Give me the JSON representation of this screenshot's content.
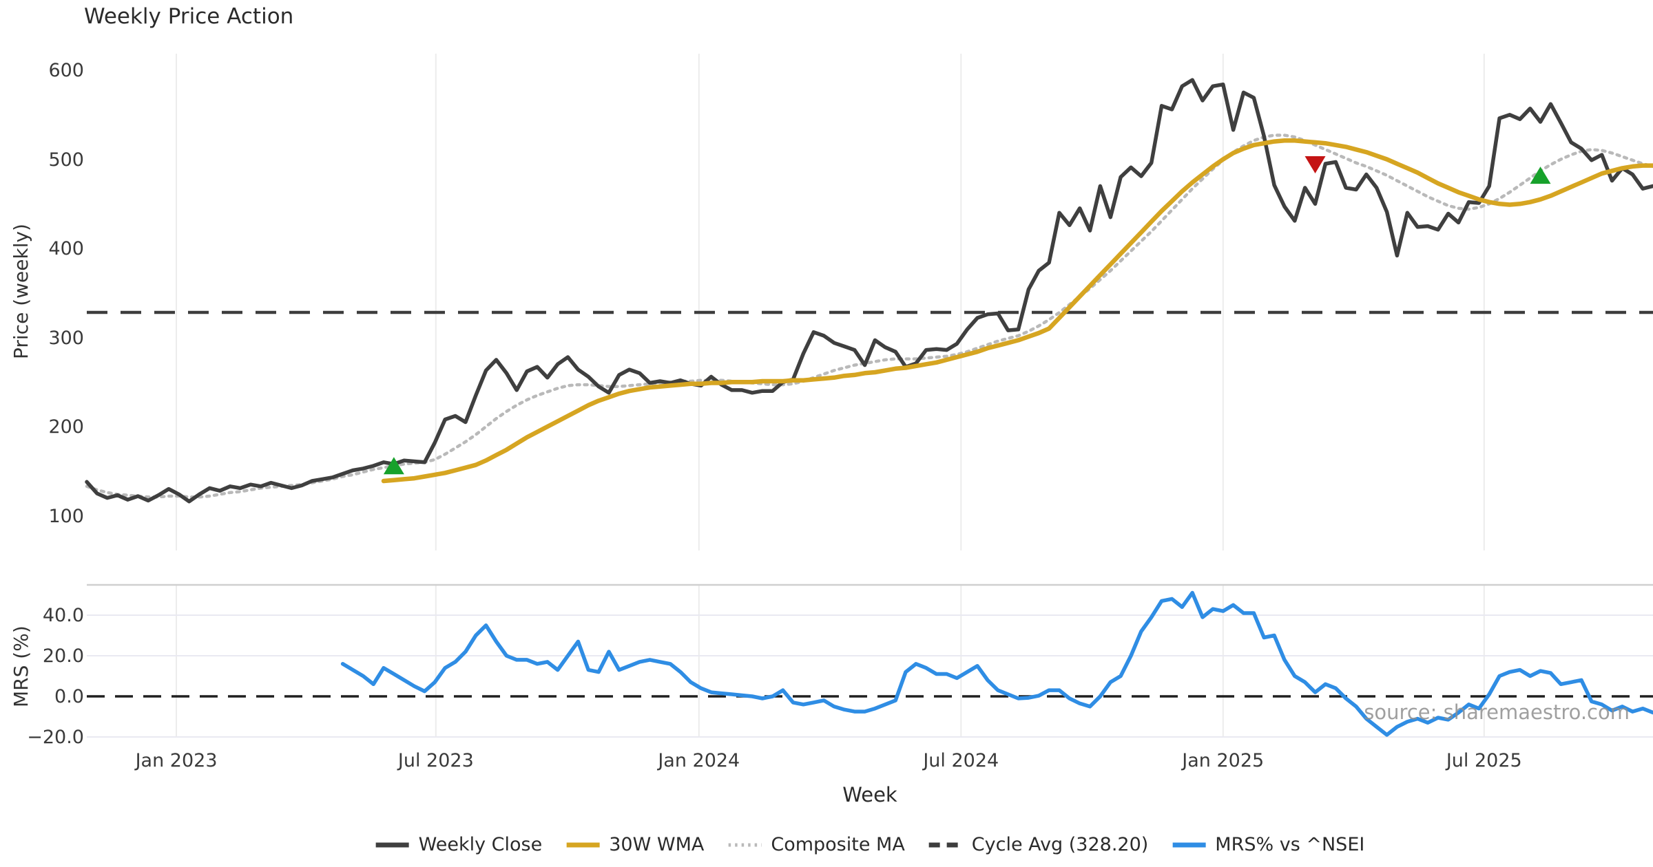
{
  "title": "Weekly Price Action",
  "watermark": "source: sharemaestro.com",
  "x_axis": {
    "label": "Week",
    "ticks": [
      {
        "label": "Jan 2023",
        "week": 8.75
      },
      {
        "label": "Jul 2023",
        "week": 34.1
      },
      {
        "label": "Jan 2024",
        "week": 59.8
      },
      {
        "label": "Jul 2024",
        "week": 85.4
      },
      {
        "label": "Jan 2025",
        "week": 111.0
      },
      {
        "label": "Jul 2025",
        "week": 136.5
      }
    ]
  },
  "legend": [
    {
      "label": "Weekly Close",
      "color": "#3f3f3f",
      "style": "solid"
    },
    {
      "label": "30W WMA",
      "color": "#d6a521",
      "style": "solid"
    },
    {
      "label": "Composite MA",
      "color": "#b9b9b9",
      "style": "dotted"
    },
    {
      "label": "Cycle Avg (328.20)",
      "color": "#3d3d3d",
      "style": "dashed"
    },
    {
      "label": "MRS% vs ^NSEI",
      "color": "#2f8de4",
      "style": "solid"
    }
  ],
  "colors": {
    "close": "#3f3f3f",
    "wma": "#d6a521",
    "composite": "#b9b9b9",
    "cycle": "#3d3d3d",
    "mrs": "#2f8de4",
    "buy": "#17a12b",
    "sell": "#c41414",
    "vgrid": "#ececec",
    "hgrid": "#e9e9f1",
    "separator": "#cfcfcf",
    "zero": "#1f1f1f"
  },
  "chart_data": [
    {
      "type": "line",
      "panel": "price",
      "title": "Weekly Price Action",
      "xlabel": "Week",
      "ylabel": "Price (weekly)",
      "yticks": [
        600,
        500,
        400,
        300,
        200,
        100
      ],
      "ylim": [
        60,
        620
      ],
      "week_count": 154,
      "x_range": [
        "Nov 2022",
        "Oct 2025"
      ],
      "grid": "vertical-only",
      "cycle_avg": 328.2,
      "series": [
        {
          "name": "Weekly Close",
          "style": "solid",
          "start_week": 0,
          "values": [
            138,
            125,
            120,
            123,
            118,
            122,
            117,
            123,
            130,
            124,
            116,
            124,
            131,
            128,
            133,
            131,
            135,
            133,
            137,
            134,
            131,
            134,
            139,
            141,
            143,
            147,
            151,
            153,
            156,
            160,
            158,
            162,
            161,
            160,
            182,
            208,
            212,
            205,
            235,
            263,
            275,
            260,
            241,
            262,
            267,
            255,
            270,
            278,
            264,
            256,
            245,
            238,
            258,
            264,
            260,
            249,
            251,
            249,
            252,
            248,
            246,
            256,
            247,
            241,
            241,
            238,
            240,
            240,
            250,
            253,
            282,
            306,
            302,
            294,
            290,
            286,
            269,
            297,
            289,
            284,
            267,
            271,
            286,
            287,
            286,
            293,
            309,
            322,
            326,
            327,
            308,
            309,
            354,
            375,
            384,
            440,
            426,
            445,
            420,
            470,
            435,
            480,
            491,
            481,
            496,
            560,
            556,
            582,
            589,
            566,
            582,
            584,
            533,
            575,
            569,
            526,
            471,
            447,
            431,
            468,
            450,
            495,
            497,
            468,
            466,
            483,
            468,
            441,
            392,
            440,
            424,
            425,
            421,
            439,
            429,
            452,
            451,
            470,
            546,
            550,
            545,
            557,
            542,
            562,
            541,
            519,
            512,
            499,
            505,
            476,
            490,
            483,
            467,
            470
          ]
        },
        {
          "name": "30W WMA",
          "style": "solid",
          "start_week": 29,
          "values": [
            139,
            140,
            141,
            142,
            144,
            146,
            148,
            151,
            154,
            157,
            162,
            168,
            174,
            181,
            188,
            194,
            200,
            206,
            212,
            218,
            224,
            229,
            233,
            237,
            240,
            242,
            244,
            245,
            246,
            247,
            248,
            248,
            249,
            249,
            250,
            250,
            250,
            251,
            251,
            251,
            252,
            252,
            253,
            254,
            255,
            257,
            258,
            260,
            261,
            263,
            265,
            266,
            268,
            270,
            272,
            275,
            278,
            281,
            284,
            288,
            291,
            294,
            297,
            301,
            305,
            310,
            322,
            334,
            346,
            358,
            370,
            382,
            394,
            406,
            418,
            430,
            442,
            453,
            464,
            474,
            483,
            492,
            500,
            507,
            512,
            516,
            518,
            520,
            521,
            521,
            520,
            519,
            518,
            516,
            514,
            511,
            508,
            504,
            500,
            495,
            490,
            485,
            479,
            473,
            468,
            463,
            459,
            455,
            452,
            450,
            449,
            450,
            452,
            455,
            459,
            464,
            469,
            474,
            479,
            484,
            487,
            490,
            492,
            493,
            493
          ]
        },
        {
          "name": "Composite MA",
          "style": "dotted",
          "start_week": 0,
          "values": [
            133,
            129,
            126,
            124,
            123,
            122,
            121,
            121,
            122,
            122,
            121,
            121,
            122,
            124,
            126,
            127,
            129,
            131,
            132,
            133,
            134,
            135,
            137,
            139,
            141,
            144,
            146,
            149,
            152,
            154,
            156,
            158,
            159,
            160,
            163,
            169,
            176,
            183,
            191,
            200,
            209,
            217,
            224,
            230,
            235,
            239,
            243,
            246,
            247,
            247,
            246,
            245,
            245,
            246,
            247,
            248,
            249,
            250,
            251,
            251,
            252,
            252,
            252,
            251,
            250,
            249,
            248,
            247,
            247,
            248,
            251,
            255,
            259,
            263,
            266,
            269,
            271,
            273,
            275,
            276,
            276,
            276,
            277,
            278,
            279,
            281,
            284,
            288,
            292,
            296,
            299,
            302,
            307,
            313,
            320,
            328,
            337,
            346,
            355,
            365,
            375,
            386,
            397,
            408,
            419,
            431,
            443,
            455,
            467,
            478,
            489,
            499,
            508,
            515,
            521,
            525,
            527,
            527,
            525,
            521,
            516,
            511,
            506,
            501,
            496,
            492,
            487,
            482,
            476,
            470,
            464,
            458,
            453,
            448,
            445,
            444,
            446,
            450,
            456,
            463,
            471,
            479,
            487,
            494,
            500,
            505,
            509,
            511,
            510,
            507,
            503,
            499,
            495,
            492
          ]
        },
        {
          "name": "Cycle Avg (328.20)",
          "style": "dashed",
          "constant": 328.2
        }
      ],
      "markers": [
        {
          "type": "buy",
          "shape": "triangle-up",
          "week": 30,
          "value": 155
        },
        {
          "type": "sell",
          "shape": "triangle-down",
          "week": 120,
          "value": 495
        },
        {
          "type": "buy",
          "shape": "triangle-up",
          "week": 142,
          "value": 481
        }
      ]
    },
    {
      "type": "line",
      "panel": "mrs",
      "ylabel": "MRS (%)",
      "yticks": [
        {
          "v": 40,
          "label": "40.0"
        },
        {
          "v": 20,
          "label": "20.0"
        },
        {
          "v": 0,
          "label": "0.0"
        },
        {
          "v": -20,
          "label": "−20.0"
        }
      ],
      "ylim": [
        -26,
        54
      ],
      "zero_line": 0,
      "series": [
        {
          "name": "MRS% vs ^NSEI",
          "style": "solid",
          "start_week": 25,
          "values": [
            16,
            13,
            10,
            6,
            14,
            11,
            8,
            5,
            2.5,
            7,
            14,
            17,
            22,
            30,
            35,
            27,
            20,
            18,
            18,
            16,
            17,
            13,
            20,
            27,
            13,
            12,
            22,
            13,
            15,
            17,
            18,
            17,
            16,
            12,
            7,
            4,
            2,
            1.5,
            1,
            0.5,
            0,
            -1,
            0,
            3,
            -3,
            -4,
            -3,
            -2,
            -5,
            -6.5,
            -7.5,
            -7.5,
            -6,
            -4,
            -2,
            12,
            16,
            14,
            11,
            11,
            9,
            12,
            15,
            8,
            3,
            1,
            -1,
            -0.7,
            0.3,
            3,
            3,
            -1,
            -3.5,
            -5,
            0,
            7,
            10,
            20,
            32,
            39,
            47,
            48,
            44,
            51,
            39,
            43,
            42,
            45,
            41,
            41,
            29,
            30,
            18,
            10,
            7,
            2,
            6,
            4,
            -1,
            -5,
            -11,
            -15,
            -19,
            -15,
            -12.5,
            -11,
            -13,
            -10.5,
            -11.5,
            -8,
            -4,
            -6,
            1,
            10,
            12,
            13,
            10,
            12.5,
            11.5,
            6,
            7,
            8,
            -2.5,
            -4,
            -7,
            -5,
            -7.5,
            -6,
            -8
          ]
        }
      ]
    }
  ]
}
